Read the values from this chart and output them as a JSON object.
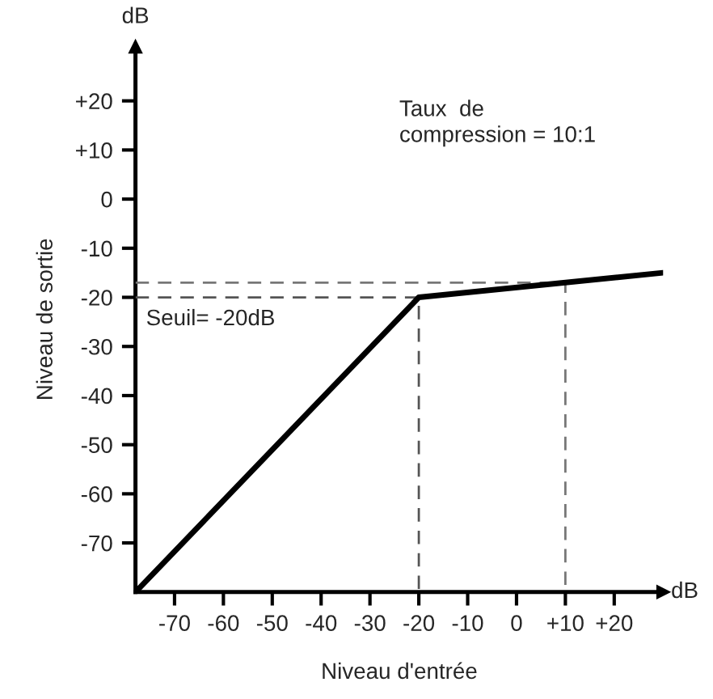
{
  "chart_data": {
    "type": "line",
    "xlabel": "Niveau d'entrée",
    "ylabel": "Niveau de sortie",
    "annotations": [
      "Taux  de\ncompression = 10:1",
      "Seuil= -20dB",
      "dB",
      "dB"
    ],
    "xlim": [
      -78,
      30
    ],
    "ylim": [
      -80,
      31
    ],
    "xticks": [
      -70,
      -60,
      -50,
      -40,
      -30,
      -20,
      -10,
      0,
      {
        "value": 10,
        "label": "+10"
      },
      {
        "value": 20,
        "label": "+20"
      }
    ],
    "yticks": [
      -70,
      -60,
      -50,
      -40,
      -30,
      -20,
      -10,
      0,
      {
        "value": 10,
        "label": "+10"
      },
      {
        "value": 20,
        "label": "+20"
      }
    ],
    "grid": false,
    "legend": false,
    "marker": "none",
    "series": [
      {
        "color": "#000000",
        "line_style": "solid",
        "x": [
          -78,
          -20,
          30
        ],
        "values": [
          -80,
          -20,
          -15
        ]
      },
      {
        "color": "#555555",
        "line_style": "dashed",
        "x": [
          -78,
          -20,
          -20
        ],
        "values": [
          -20,
          -20,
          -80
        ]
      },
      {
        "color": "#777777",
        "line_style": "dashed",
        "x": [
          -78,
          10,
          10
        ],
        "values": [
          -17,
          -17,
          -80
        ]
      }
    ]
  }
}
